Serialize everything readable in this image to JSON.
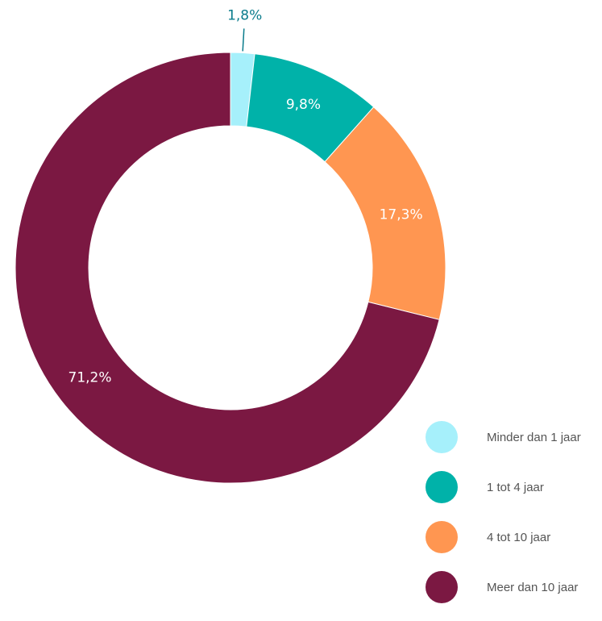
{
  "chart_data": {
    "type": "pie",
    "variant": "donut",
    "categories": [
      "Minder dan 1 jaar",
      "1 tot 4 jaar",
      "4 tot 10 jaar",
      "Meer dan 10 jaar"
    ],
    "values": [
      1.8,
      9.8,
      17.3,
      71.2
    ],
    "data_labels": [
      "1,8%",
      "9,8%",
      "17,3%",
      "71,2%"
    ],
    "colors": [
      "#a6f0fb",
      "#00b2a9",
      "#ff9651",
      "#7b1842"
    ],
    "label_colors": [
      "#0a7c8c",
      "#ffffff",
      "#ffffff",
      "#ffffff"
    ],
    "legend_position": "bottom-right"
  }
}
